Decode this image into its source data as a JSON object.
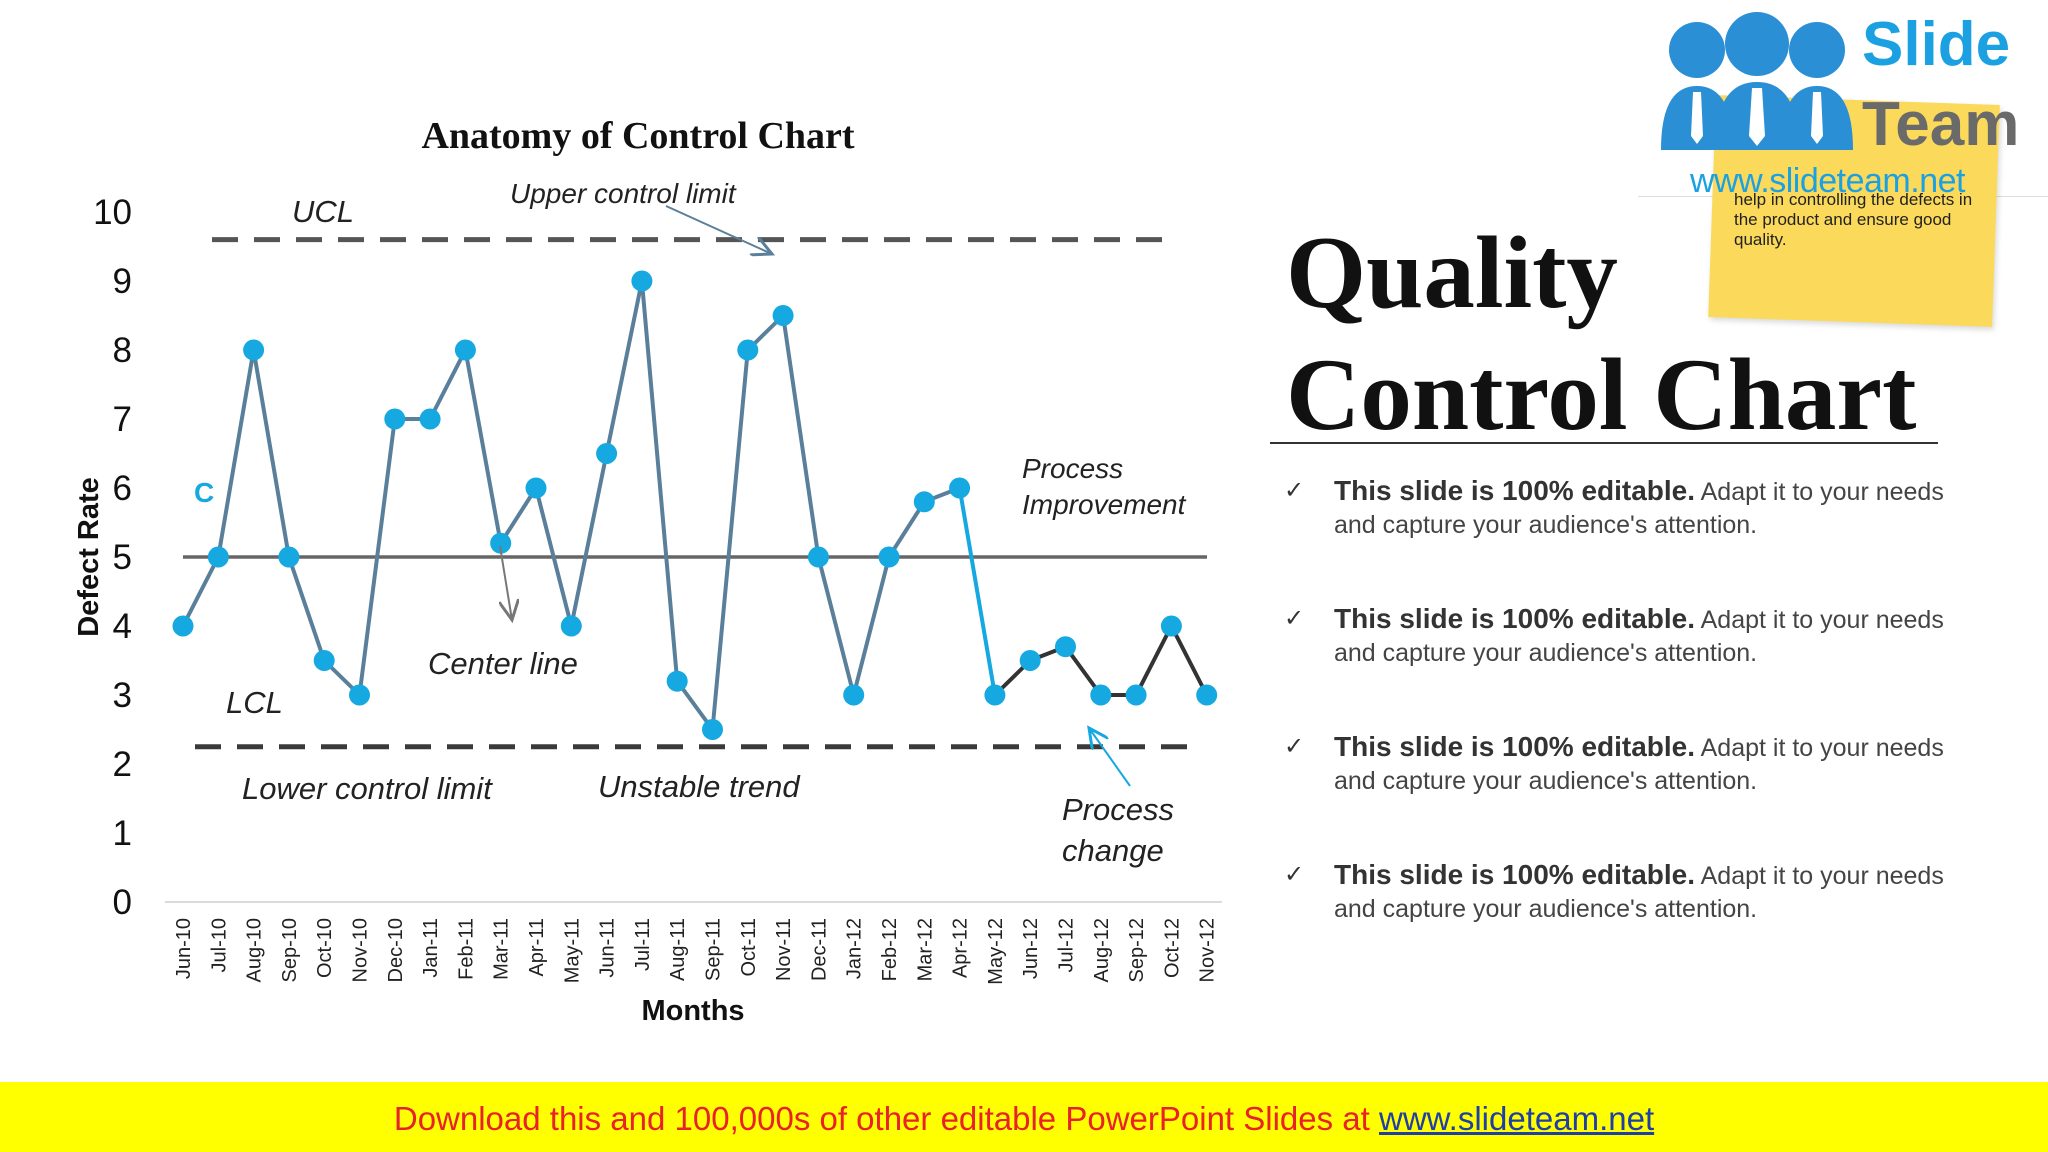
{
  "chart_data": {
    "type": "line",
    "title": "Anatomy of Control Chart",
    "xlabel": "Months",
    "ylabel": "Defect Rate",
    "ylim": [
      0,
      10
    ],
    "yticks": [
      "0",
      "1",
      "2",
      "3",
      "4",
      "5",
      "6",
      "7",
      "8",
      "9",
      "10"
    ],
    "categories": [
      "Jun-10",
      "Jul-10",
      "Aug-10",
      "Sep-10",
      "Oct-10",
      "Nov-10",
      "Dec-10",
      "Jan-11",
      "Feb-11",
      "Mar-11",
      "Apr-11",
      "May-11",
      "Jun-11",
      "Jul-11",
      "Aug-11",
      "Sep-11",
      "Oct-11",
      "Nov-11",
      "Dec-11",
      "Jan-12",
      "Feb-12",
      "Mar-12",
      "Apr-12",
      "May-12",
      "Jun-12",
      "Jul-12",
      "Aug-12",
      "Sep-12",
      "Oct-12",
      "Nov-12"
    ],
    "series": [
      {
        "name": "Defect Rate",
        "values": [
          4,
          5,
          8,
          5,
          3.5,
          3,
          7,
          7,
          8,
          5.2,
          6,
          4,
          6.5,
          9,
          3.2,
          2.5,
          8,
          8.5,
          5,
          3,
          5,
          5.8,
          6,
          3,
          3.5,
          3.7,
          3,
          3,
          4,
          3
        ]
      }
    ],
    "ucl": 9.6,
    "center_line": 5,
    "lcl": 2.25,
    "annotations": {
      "ucl": "UCL",
      "upper_control_limit": "Upper control limit",
      "lcl": "LCL",
      "lower_control_limit": "Lower control limit",
      "center_line": "Center line",
      "unstable_trend": "Unstable trend",
      "process_improvement_1": "Process",
      "process_improvement_2": "Improvement",
      "process_change_1": "Process",
      "process_change_2": "change",
      "c_label": "C"
    }
  },
  "title": {
    "line1": "Quality",
    "line2": "Control Chart"
  },
  "bullets": [
    {
      "strong": "This slide is 100% editable.",
      "text": " Adapt it to your needs and capture your audience's attention."
    },
    {
      "strong": "This slide is 100% editable.",
      "text": " Adapt it to your needs and capture your audience's attention."
    },
    {
      "strong": "This slide is 100% editable.",
      "text": " Adapt it to your needs and capture your audience's attention."
    },
    {
      "strong": "This slide is 100% editable.",
      "text": " Adapt it to your needs and capture your audience's attention."
    }
  ],
  "sticky_note": {
    "text": "help in controlling the defects in the product and ensure good quality."
  },
  "logo": {
    "slide": "Slide",
    "team": "Team",
    "url": "www.slideteam.net"
  },
  "footer": {
    "text": "Download this and 100,000s of other editable PowerPoint Slides at ",
    "link": "www.slideteam.net"
  },
  "colors": {
    "line": "#5a7f9a",
    "marker": "#16a8e0",
    "limit": "#555555",
    "footer_bg": "#ffff00"
  }
}
